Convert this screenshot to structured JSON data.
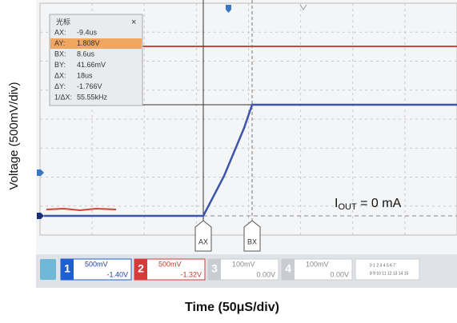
{
  "y_axis_label": "Voltage (500mV/div)",
  "x_axis_label": "Time (50μS/div)",
  "cursor_panel": {
    "title": "光标",
    "close": "×",
    "rows": [
      [
        "AX:",
        "-9.4us"
      ],
      [
        "AY:",
        "1.808V"
      ],
      [
        "BX:",
        "8.6us"
      ],
      [
        "BY:",
        "41.66mV"
      ],
      [
        "ΔX:",
        "18us"
      ],
      [
        "ΔY:",
        "-1.766V"
      ],
      [
        "1/ΔX:",
        "55.55kHz"
      ]
    ]
  },
  "annotation": {
    "main": "I",
    "sub": "OUT",
    "rest": " = 0 mA"
  },
  "cursor_labels": [
    "AX",
    "BX"
  ],
  "channels": [
    {
      "number": "1",
      "scale": "500mV",
      "offset": "-1.40V"
    },
    {
      "number": "2",
      "scale": "500mV",
      "offset": "-1.32V"
    },
    {
      "number": "3",
      "scale": "100mV",
      "offset": "0.00V"
    },
    {
      "number": "4",
      "scale": "100mV",
      "offset": "0.00V"
    }
  ],
  "digital": [
    "0 1 2 3  4 5 6 7",
    "8 9 10 11 12 13 14 15"
  ]
}
